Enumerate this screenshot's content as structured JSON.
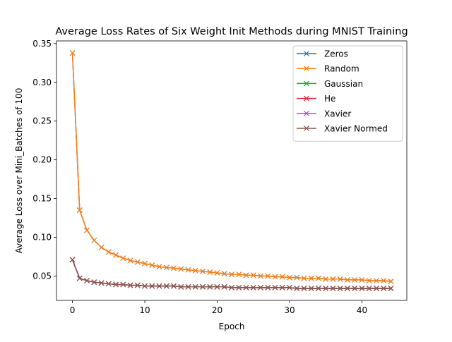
{
  "chart_data": {
    "type": "line",
    "title": "Average Loss Rates of Six Weight Init Methods during MNIST Training",
    "xlabel": "Epoch",
    "ylabel": "Average Loss over Mini_Batches of 100",
    "xlim": [
      -2.2,
      46.2
    ],
    "ylim": [
      0.0185,
      0.3535
    ],
    "x_ticks": [
      0,
      10,
      20,
      30,
      40
    ],
    "x_tick_labels": [
      "0",
      "10",
      "20",
      "30",
      "40"
    ],
    "y_ticks": [
      0.05,
      0.1,
      0.15,
      0.2,
      0.25,
      0.3,
      0.35
    ],
    "y_tick_labels": [
      "0.05",
      "0.10",
      "0.15",
      "0.20",
      "0.25",
      "0.30",
      "0.35"
    ],
    "grid": false,
    "legend_position": "top-right",
    "marker": "x",
    "x": [
      0,
      1,
      2,
      3,
      4,
      5,
      6,
      7,
      8,
      9,
      10,
      11,
      12,
      13,
      14,
      15,
      16,
      17,
      18,
      19,
      20,
      21,
      22,
      23,
      24,
      25,
      26,
      27,
      28,
      29,
      30,
      31,
      32,
      33,
      34,
      35,
      36,
      37,
      38,
      39,
      40,
      41,
      42,
      43,
      44
    ],
    "series": [
      {
        "name": "Zeros",
        "color": "#1f77b4",
        "values": [
          0.338,
          0.135,
          0.109,
          0.096,
          0.087,
          0.081,
          0.077,
          0.073,
          0.07,
          0.068,
          0.066,
          0.064,
          0.062,
          0.061,
          0.06,
          0.059,
          0.058,
          0.057,
          0.056,
          0.055,
          0.054,
          0.053,
          0.052,
          0.052,
          0.051,
          0.051,
          0.05,
          0.05,
          0.049,
          0.049,
          0.048,
          0.048,
          0.047,
          0.047,
          0.047,
          0.046,
          0.046,
          0.046,
          0.045,
          0.045,
          0.045,
          0.044,
          0.044,
          0.044,
          0.043
        ]
      },
      {
        "name": "Random",
        "color": "#ff7f0e",
        "values": [
          0.338,
          0.135,
          0.109,
          0.096,
          0.087,
          0.081,
          0.077,
          0.073,
          0.07,
          0.068,
          0.066,
          0.064,
          0.062,
          0.061,
          0.06,
          0.059,
          0.058,
          0.057,
          0.056,
          0.055,
          0.054,
          0.053,
          0.052,
          0.052,
          0.051,
          0.051,
          0.05,
          0.05,
          0.049,
          0.049,
          0.048,
          0.048,
          0.047,
          0.047,
          0.047,
          0.046,
          0.046,
          0.046,
          0.045,
          0.045,
          0.045,
          0.044,
          0.044,
          0.044,
          0.043
        ]
      },
      {
        "name": "Gaussian",
        "color": "#2ca02c",
        "values": [
          0.071,
          0.047,
          0.044,
          0.042,
          0.041,
          0.04,
          0.039,
          0.039,
          0.038,
          0.038,
          0.037,
          0.037,
          0.037,
          0.037,
          0.037,
          0.036,
          0.036,
          0.036,
          0.036,
          0.036,
          0.036,
          0.036,
          0.035,
          0.035,
          0.035,
          0.035,
          0.035,
          0.035,
          0.035,
          0.035,
          0.035,
          0.034,
          0.034,
          0.034,
          0.034,
          0.034,
          0.034,
          0.034,
          0.034,
          0.034,
          0.034,
          0.034,
          0.034,
          0.034,
          0.034
        ]
      },
      {
        "name": "He",
        "color": "#d62728",
        "values": [
          0.071,
          0.047,
          0.044,
          0.042,
          0.041,
          0.04,
          0.039,
          0.039,
          0.038,
          0.038,
          0.037,
          0.037,
          0.037,
          0.037,
          0.037,
          0.036,
          0.036,
          0.036,
          0.036,
          0.036,
          0.036,
          0.036,
          0.035,
          0.035,
          0.035,
          0.035,
          0.035,
          0.035,
          0.035,
          0.035,
          0.035,
          0.034,
          0.034,
          0.034,
          0.034,
          0.034,
          0.034,
          0.034,
          0.034,
          0.034,
          0.034,
          0.034,
          0.034,
          0.034,
          0.034
        ]
      },
      {
        "name": "Xavier",
        "color": "#9467bd",
        "values": [
          0.071,
          0.047,
          0.044,
          0.042,
          0.041,
          0.04,
          0.039,
          0.039,
          0.038,
          0.038,
          0.037,
          0.037,
          0.037,
          0.037,
          0.037,
          0.036,
          0.036,
          0.036,
          0.036,
          0.036,
          0.036,
          0.036,
          0.035,
          0.035,
          0.035,
          0.035,
          0.035,
          0.035,
          0.035,
          0.035,
          0.035,
          0.034,
          0.034,
          0.034,
          0.034,
          0.034,
          0.034,
          0.034,
          0.034,
          0.034,
          0.034,
          0.034,
          0.034,
          0.034,
          0.034
        ]
      },
      {
        "name": "Xavier Normed",
        "color": "#8c564b",
        "values": [
          0.071,
          0.047,
          0.044,
          0.042,
          0.041,
          0.04,
          0.039,
          0.039,
          0.038,
          0.038,
          0.037,
          0.037,
          0.037,
          0.037,
          0.037,
          0.036,
          0.036,
          0.036,
          0.036,
          0.036,
          0.036,
          0.036,
          0.035,
          0.035,
          0.035,
          0.035,
          0.035,
          0.035,
          0.035,
          0.035,
          0.035,
          0.034,
          0.034,
          0.034,
          0.034,
          0.034,
          0.034,
          0.034,
          0.034,
          0.034,
          0.034,
          0.034,
          0.034,
          0.034,
          0.034
        ]
      }
    ]
  }
}
